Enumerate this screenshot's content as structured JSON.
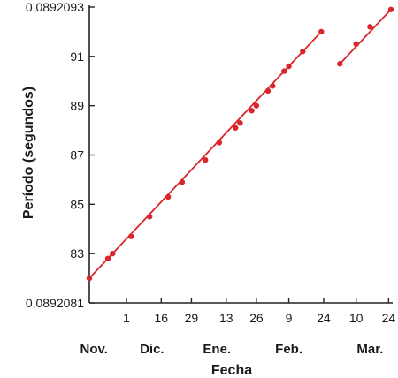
{
  "chart_data": {
    "type": "line",
    "xlabel": "Fecha",
    "ylabel": "Período (segundos)",
    "y_tick_labels": [
      "0,0892081",
      "83",
      "85",
      "87",
      "89",
      "91",
      "0,0892093"
    ],
    "y_tick_values": [
      81,
      83,
      85,
      87,
      89,
      91,
      93
    ],
    "ylim": [
      81,
      93
    ],
    "y_scale_note_unit": "x 10^-7 added to 0,08920",
    "x_tick_labels": [
      "1",
      "16",
      "29",
      "13",
      "26",
      "9",
      "24",
      "10",
      "24"
    ],
    "x_tick_days": [
      16,
      31,
      44,
      59,
      72,
      86,
      101,
      115,
      129
    ],
    "xlim": [
      0,
      130
    ],
    "month_labels": [
      {
        "label": "Nov.",
        "day": 2
      },
      {
        "label": "Dic.",
        "day": 27
      },
      {
        "label": "Ene.",
        "day": 55
      },
      {
        "label": "Feb.",
        "day": 86
      },
      {
        "label": "Mar.",
        "day": 121
      }
    ],
    "series": [
      {
        "segment": 1,
        "points": [
          {
            "x": 0,
            "y": 82.0
          },
          {
            "x": 8,
            "y": 82.8
          },
          {
            "x": 10,
            "y": 83.0
          },
          {
            "x": 18,
            "y": 83.7
          },
          {
            "x": 26,
            "y": 84.5
          },
          {
            "x": 34,
            "y": 85.3
          },
          {
            "x": 40,
            "y": 85.9
          },
          {
            "x": 50,
            "y": 86.8
          },
          {
            "x": 56,
            "y": 87.5
          },
          {
            "x": 63,
            "y": 88.1
          },
          {
            "x": 65,
            "y": 88.3
          },
          {
            "x": 70,
            "y": 88.8
          },
          {
            "x": 72,
            "y": 89.0
          },
          {
            "x": 77,
            "y": 89.6
          },
          {
            "x": 79,
            "y": 89.8
          },
          {
            "x": 84,
            "y": 90.4
          },
          {
            "x": 86,
            "y": 90.6
          },
          {
            "x": 92,
            "y": 91.2
          },
          {
            "x": 100,
            "y": 92.0
          }
        ]
      },
      {
        "segment": 2,
        "points": [
          {
            "x": 108,
            "y": 90.7
          },
          {
            "x": 115,
            "y": 91.5
          },
          {
            "x": 121,
            "y": 92.2
          },
          {
            "x": 130,
            "y": 92.9
          }
        ]
      }
    ]
  }
}
